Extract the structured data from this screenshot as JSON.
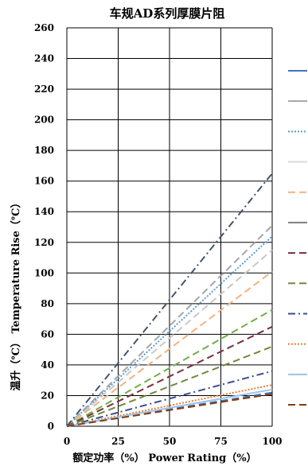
{
  "chart_data": {
    "type": "line",
    "title": "车规AD系列厚膜片阻",
    "xlabel": "额定功率（%） Power Rating（%）",
    "ylabel": "温升（℃） Temperature Rise（℃）",
    "xlim": [
      0,
      100
    ],
    "ylim": [
      0,
      260
    ],
    "x_ticks": [
      "0",
      "25",
      "50",
      "75",
      "100"
    ],
    "y_ticks": [
      "0",
      "20",
      "40",
      "60",
      "80",
      "100",
      "120",
      "140",
      "160",
      "180",
      "200",
      "220",
      "240",
      "260"
    ],
    "grid": true,
    "legend_position": "right",
    "series": [
      {
        "color": "#4472c4",
        "dash": "long-dash",
        "x": [
          0,
          100
        ],
        "y": [
          0,
          22
        ]
      },
      {
        "color": "#a5a5a5",
        "dash": "long-dash",
        "x": [
          0,
          100
        ],
        "y": [
          0,
          131
        ]
      },
      {
        "color": "#5b9bd5",
        "dash": "dotted",
        "x": [
          0,
          100
        ],
        "y": [
          0,
          124
        ]
      },
      {
        "color": "#c9c9c9",
        "dash": "long-dash",
        "x": [
          0,
          100
        ],
        "y": [
          0,
          115
        ]
      },
      {
        "color": "#f4b183",
        "dash": "long-dash",
        "x": [
          0,
          100
        ],
        "y": [
          0,
          101
        ]
      },
      {
        "color": "#70ad47",
        "dash": "long-dash",
        "x": [
          0,
          100
        ],
        "y": [
          0,
          76
        ]
      },
      {
        "color": "#7b2d3e",
        "dash": "long-dash",
        "x": [
          0,
          100
        ],
        "y": [
          0,
          65
        ]
      },
      {
        "color": "#6e8a3c",
        "dash": "long-dash",
        "x": [
          0,
          100
        ],
        "y": [
          0,
          52
        ]
      },
      {
        "color": "#3a4e8c",
        "dash": "dash-dot",
        "x": [
          0,
          100
        ],
        "y": [
          0,
          36
        ]
      },
      {
        "color": "#ed7d31",
        "dash": "dotted",
        "x": [
          0,
          100
        ],
        "y": [
          0,
          27
        ]
      },
      {
        "color": "#9dc3e6",
        "dash": "solid",
        "x": [
          0,
          100
        ],
        "y": [
          0,
          24
        ]
      },
      {
        "color": "#843c0c",
        "dash": "long-dash",
        "x": [
          0,
          100
        ],
        "y": [
          0,
          21
        ]
      },
      {
        "color": "#44546a",
        "dash": "dash-dot",
        "x": [
          0,
          100
        ],
        "y": [
          0,
          165
        ]
      }
    ],
    "legend_swatches": [
      {
        "color": "#4472c4",
        "dash": "solid"
      },
      {
        "color": "#a5a5a5",
        "dash": "solid"
      },
      {
        "color": "#5b9bd5",
        "dash": "dotted"
      },
      {
        "color": "#d9d9d9",
        "dash": "solid"
      },
      {
        "color": "#f4b183",
        "dash": "long-dash"
      },
      {
        "color": "#7f7f7f",
        "dash": "solid"
      },
      {
        "color": "#7b2d3e",
        "dash": "long-dash"
      },
      {
        "color": "#6e8a3c",
        "dash": "long-dash"
      },
      {
        "color": "#3a4e8c",
        "dash": "dash-dot"
      },
      {
        "color": "#ed7d31",
        "dash": "dotted"
      },
      {
        "color": "#9dc3e6",
        "dash": "solid"
      },
      {
        "color": "#843c0c",
        "dash": "long-dash"
      }
    ]
  }
}
